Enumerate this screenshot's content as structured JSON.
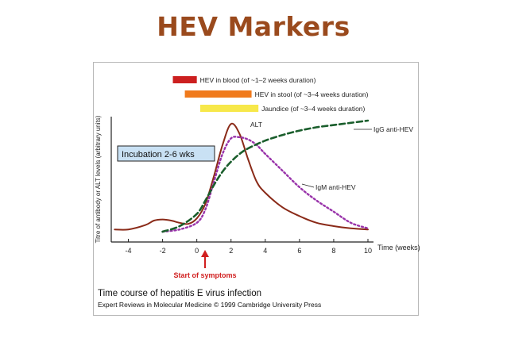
{
  "slide": {
    "title": "HEV Markers"
  },
  "figure": {
    "caption": "Time course of hepatitis E virus infection",
    "credit": "Expert Reviews in Molecular Medicine © 1999 Cambridge University Press",
    "incubation_label": "Incubation 2-6 wks",
    "start_symptoms_label": "Start of symptoms"
  },
  "chart_data": {
    "type": "line",
    "title": "Time course of hepatitis E virus infection",
    "xlabel": "Time (weeks)",
    "ylabel": "Titre of antibody or ALT levels (arbitrary units)",
    "xlim": [
      -5,
      10
    ],
    "ylim": [
      0,
      100
    ],
    "x_ticks": [
      -4,
      -2,
      0,
      2,
      4,
      6,
      8,
      10
    ],
    "bars": [
      {
        "label": "HEV in blood (of ~1–2 weeks duration)",
        "start": -1.4,
        "end": 0.0,
        "color": "#cc1f1f"
      },
      {
        "label": "HEV in stool (of ~3–4 weeks duration)",
        "start": -0.7,
        "end": 3.2,
        "color": "#f07a1c"
      },
      {
        "label": "Jaundice (of ~3–4 weeks duration)",
        "start": 0.2,
        "end": 3.6,
        "color": "#f7e84a"
      }
    ],
    "series": [
      {
        "name": "ALT",
        "label": "ALT",
        "style": "solid",
        "color": "#8a2a18",
        "x": [
          -4.8,
          -4,
          -3,
          -2.5,
          -2,
          -1.5,
          -1,
          -0.5,
          0,
          0.5,
          1,
          1.5,
          2,
          2.5,
          3,
          3.5,
          4,
          5,
          6,
          7,
          8,
          9,
          10
        ],
        "y": [
          2,
          2,
          6,
          10,
          11,
          10,
          8,
          7,
          12,
          25,
          50,
          78,
          97,
          88,
          65,
          45,
          35,
          22,
          14,
          8,
          5,
          3,
          2
        ]
      },
      {
        "name": "IgM anti-HEV",
        "label": "IgM anti-HEV",
        "style": "dotted",
        "color": "#9933aa",
        "x": [
          -2,
          -1,
          0,
          0.5,
          1,
          1.5,
          2,
          2.5,
          3,
          3.5,
          4,
          5,
          6,
          7,
          8,
          9,
          10
        ],
        "y": [
          0,
          2,
          8,
          20,
          45,
          70,
          84,
          85,
          83,
          78,
          70,
          55,
          40,
          28,
          18,
          8,
          3
        ]
      },
      {
        "name": "IgG anti-HEV",
        "label": "IgG anti-HEV",
        "style": "dashed",
        "color": "#1a5e2c",
        "x": [
          -2,
          -1,
          0,
          0.5,
          1,
          1.5,
          2,
          2.5,
          3,
          4,
          5,
          6,
          7,
          8,
          9,
          10
        ],
        "y": [
          0,
          5,
          16,
          28,
          42,
          54,
          63,
          70,
          75,
          82,
          87,
          91,
          94,
          96,
          98,
          100
        ]
      }
    ],
    "annotations": [
      {
        "text": "Incubation 2-6 wks",
        "type": "box"
      },
      {
        "text": "Start of symptoms",
        "type": "arrow",
        "x": 0
      }
    ]
  }
}
